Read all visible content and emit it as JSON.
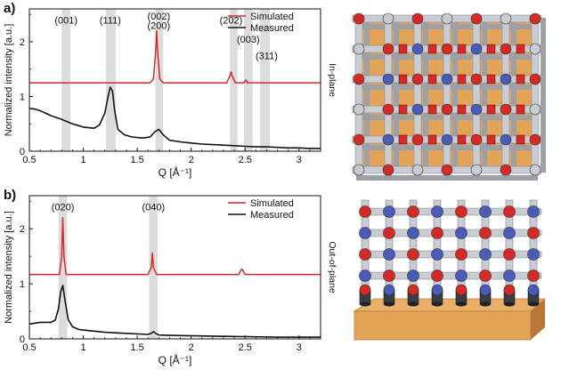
{
  "chart_data": [
    {
      "type": "line",
      "panel_label": "a)",
      "side_label": "In-plane",
      "xlabel": "Q [Å⁻¹]",
      "ylabel": "Normalized intensity [a.u.]",
      "xlim": [
        0.5,
        3.2
      ],
      "ylim": [
        0,
        2.6
      ],
      "x_ticks": [
        "0.5",
        "1",
        "1.5",
        "2",
        "2.5",
        "3"
      ],
      "y_ticks": [
        "0",
        "1",
        "2"
      ],
      "legend": {
        "position": "top-right",
        "entries": [
          "Simulated",
          "Measured"
        ]
      },
      "highlight_bands": [
        [
          0.8,
          0.88
        ],
        [
          1.21,
          1.3
        ],
        [
          1.67,
          1.74
        ],
        [
          2.36,
          2.43
        ],
        [
          2.49,
          2.57
        ],
        [
          2.64,
          2.73
        ]
      ],
      "peak_labels": [
        {
          "text": "(001)",
          "x": 0.84,
          "y": 2.4
        },
        {
          "text": "(111)",
          "x": 1.25,
          "y": 2.4
        },
        {
          "text": "(002)",
          "x": 1.7,
          "y": 2.47
        },
        {
          "text": "(200)",
          "x": 1.7,
          "y": 2.3
        },
        {
          "text": "(202)",
          "x": 2.37,
          "y": 2.4
        },
        {
          "text": "(003)",
          "x": 2.53,
          "y": 2.05
        },
        {
          "text": "(311)",
          "x": 2.7,
          "y": 1.75
        }
      ],
      "series": [
        {
          "name": "Simulated",
          "color": "#d42a2a",
          "x": [
            0.5,
            1.62,
            1.65,
            1.67,
            1.68,
            1.69,
            1.71,
            1.74,
            2.33,
            2.36,
            2.37,
            2.38,
            2.41,
            2.49,
            2.5,
            2.51,
            2.52,
            3.2
          ],
          "y": [
            1.25,
            1.25,
            1.32,
            1.8,
            2.2,
            1.8,
            1.32,
            1.25,
            1.25,
            1.38,
            1.45,
            1.38,
            1.25,
            1.25,
            1.28,
            1.3,
            1.25,
            1.25
          ]
        },
        {
          "name": "Measured",
          "color": "#111111",
          "x": [
            0.5,
            0.55,
            0.6,
            0.7,
            0.8,
            0.9,
            1.0,
            1.1,
            1.15,
            1.2,
            1.23,
            1.25,
            1.27,
            1.29,
            1.32,
            1.38,
            1.45,
            1.55,
            1.62,
            1.66,
            1.7,
            1.74,
            1.8,
            1.9,
            2.0,
            2.1,
            2.2,
            2.3,
            2.4,
            2.5,
            2.6,
            2.7,
            2.8,
            2.9,
            3.0,
            3.1,
            3.2
          ],
          "y": [
            0.78,
            0.77,
            0.74,
            0.65,
            0.58,
            0.5,
            0.44,
            0.42,
            0.48,
            0.7,
            1.0,
            1.17,
            1.1,
            0.75,
            0.4,
            0.3,
            0.26,
            0.24,
            0.26,
            0.35,
            0.4,
            0.3,
            0.2,
            0.17,
            0.15,
            0.13,
            0.12,
            0.11,
            0.1,
            0.09,
            0.08,
            0.08,
            0.07,
            0.06,
            0.06,
            0.05,
            0.05
          ]
        }
      ]
    },
    {
      "type": "line",
      "panel_label": "b)",
      "side_label": "Out-of-plane",
      "xlabel": "Q [Å⁻¹]",
      "ylabel": "Normalized intensity [a.u.]",
      "xlim": [
        0.5,
        3.2
      ],
      "ylim": [
        0,
        2.6
      ],
      "x_ticks": [
        "0.5",
        "1",
        "1.5",
        "2",
        "2.5",
        "3"
      ],
      "y_ticks": [
        "0",
        "1",
        "2"
      ],
      "legend": {
        "position": "top-right",
        "entries": [
          "Simulated",
          "Measured"
        ]
      },
      "highlight_bands": [
        [
          0.77,
          0.85
        ],
        [
          1.61,
          1.69
        ]
      ],
      "peak_labels": [
        {
          "text": "(020)",
          "x": 0.81,
          "y": 2.4
        },
        {
          "text": "(040)",
          "x": 1.65,
          "y": 2.4
        }
      ],
      "series": [
        {
          "name": "Simulated",
          "color": "#d42a2a",
          "x": [
            0.5,
            0.78,
            0.8,
            0.81,
            0.82,
            0.84,
            1.6,
            1.63,
            1.64,
            1.65,
            1.68,
            2.44,
            2.46,
            2.47,
            2.48,
            2.5,
            3.2
          ],
          "y": [
            1.17,
            1.17,
            1.5,
            2.2,
            1.5,
            1.17,
            1.17,
            1.3,
            1.56,
            1.3,
            1.17,
            1.17,
            1.24,
            1.27,
            1.24,
            1.17,
            1.17
          ]
        },
        {
          "name": "Measured",
          "color": "#111111",
          "x": [
            0.5,
            0.6,
            0.7,
            0.74,
            0.77,
            0.79,
            0.81,
            0.83,
            0.86,
            0.9,
            0.96,
            1.05,
            1.2,
            1.4,
            1.6,
            1.63,
            1.65,
            1.67,
            1.7,
            1.9,
            2.2,
            2.5,
            2.8,
            3.0,
            3.2
          ],
          "y": [
            0.27,
            0.3,
            0.3,
            0.34,
            0.55,
            0.85,
            0.97,
            0.7,
            0.35,
            0.22,
            0.17,
            0.15,
            0.12,
            0.1,
            0.08,
            0.1,
            0.13,
            0.1,
            0.07,
            0.06,
            0.05,
            0.04,
            0.03,
            0.03,
            0.03
          ]
        }
      ]
    }
  ],
  "colors": {
    "band": "#dcdcdc",
    "rod": "#c9ccd2",
    "node_red": "#d62a26",
    "node_blue": "#4a5cb8",
    "node_gray": "#c8cbd1",
    "base": "#e3a457",
    "base_dark": "#b9773a",
    "pillar": "#3a3d43"
  }
}
